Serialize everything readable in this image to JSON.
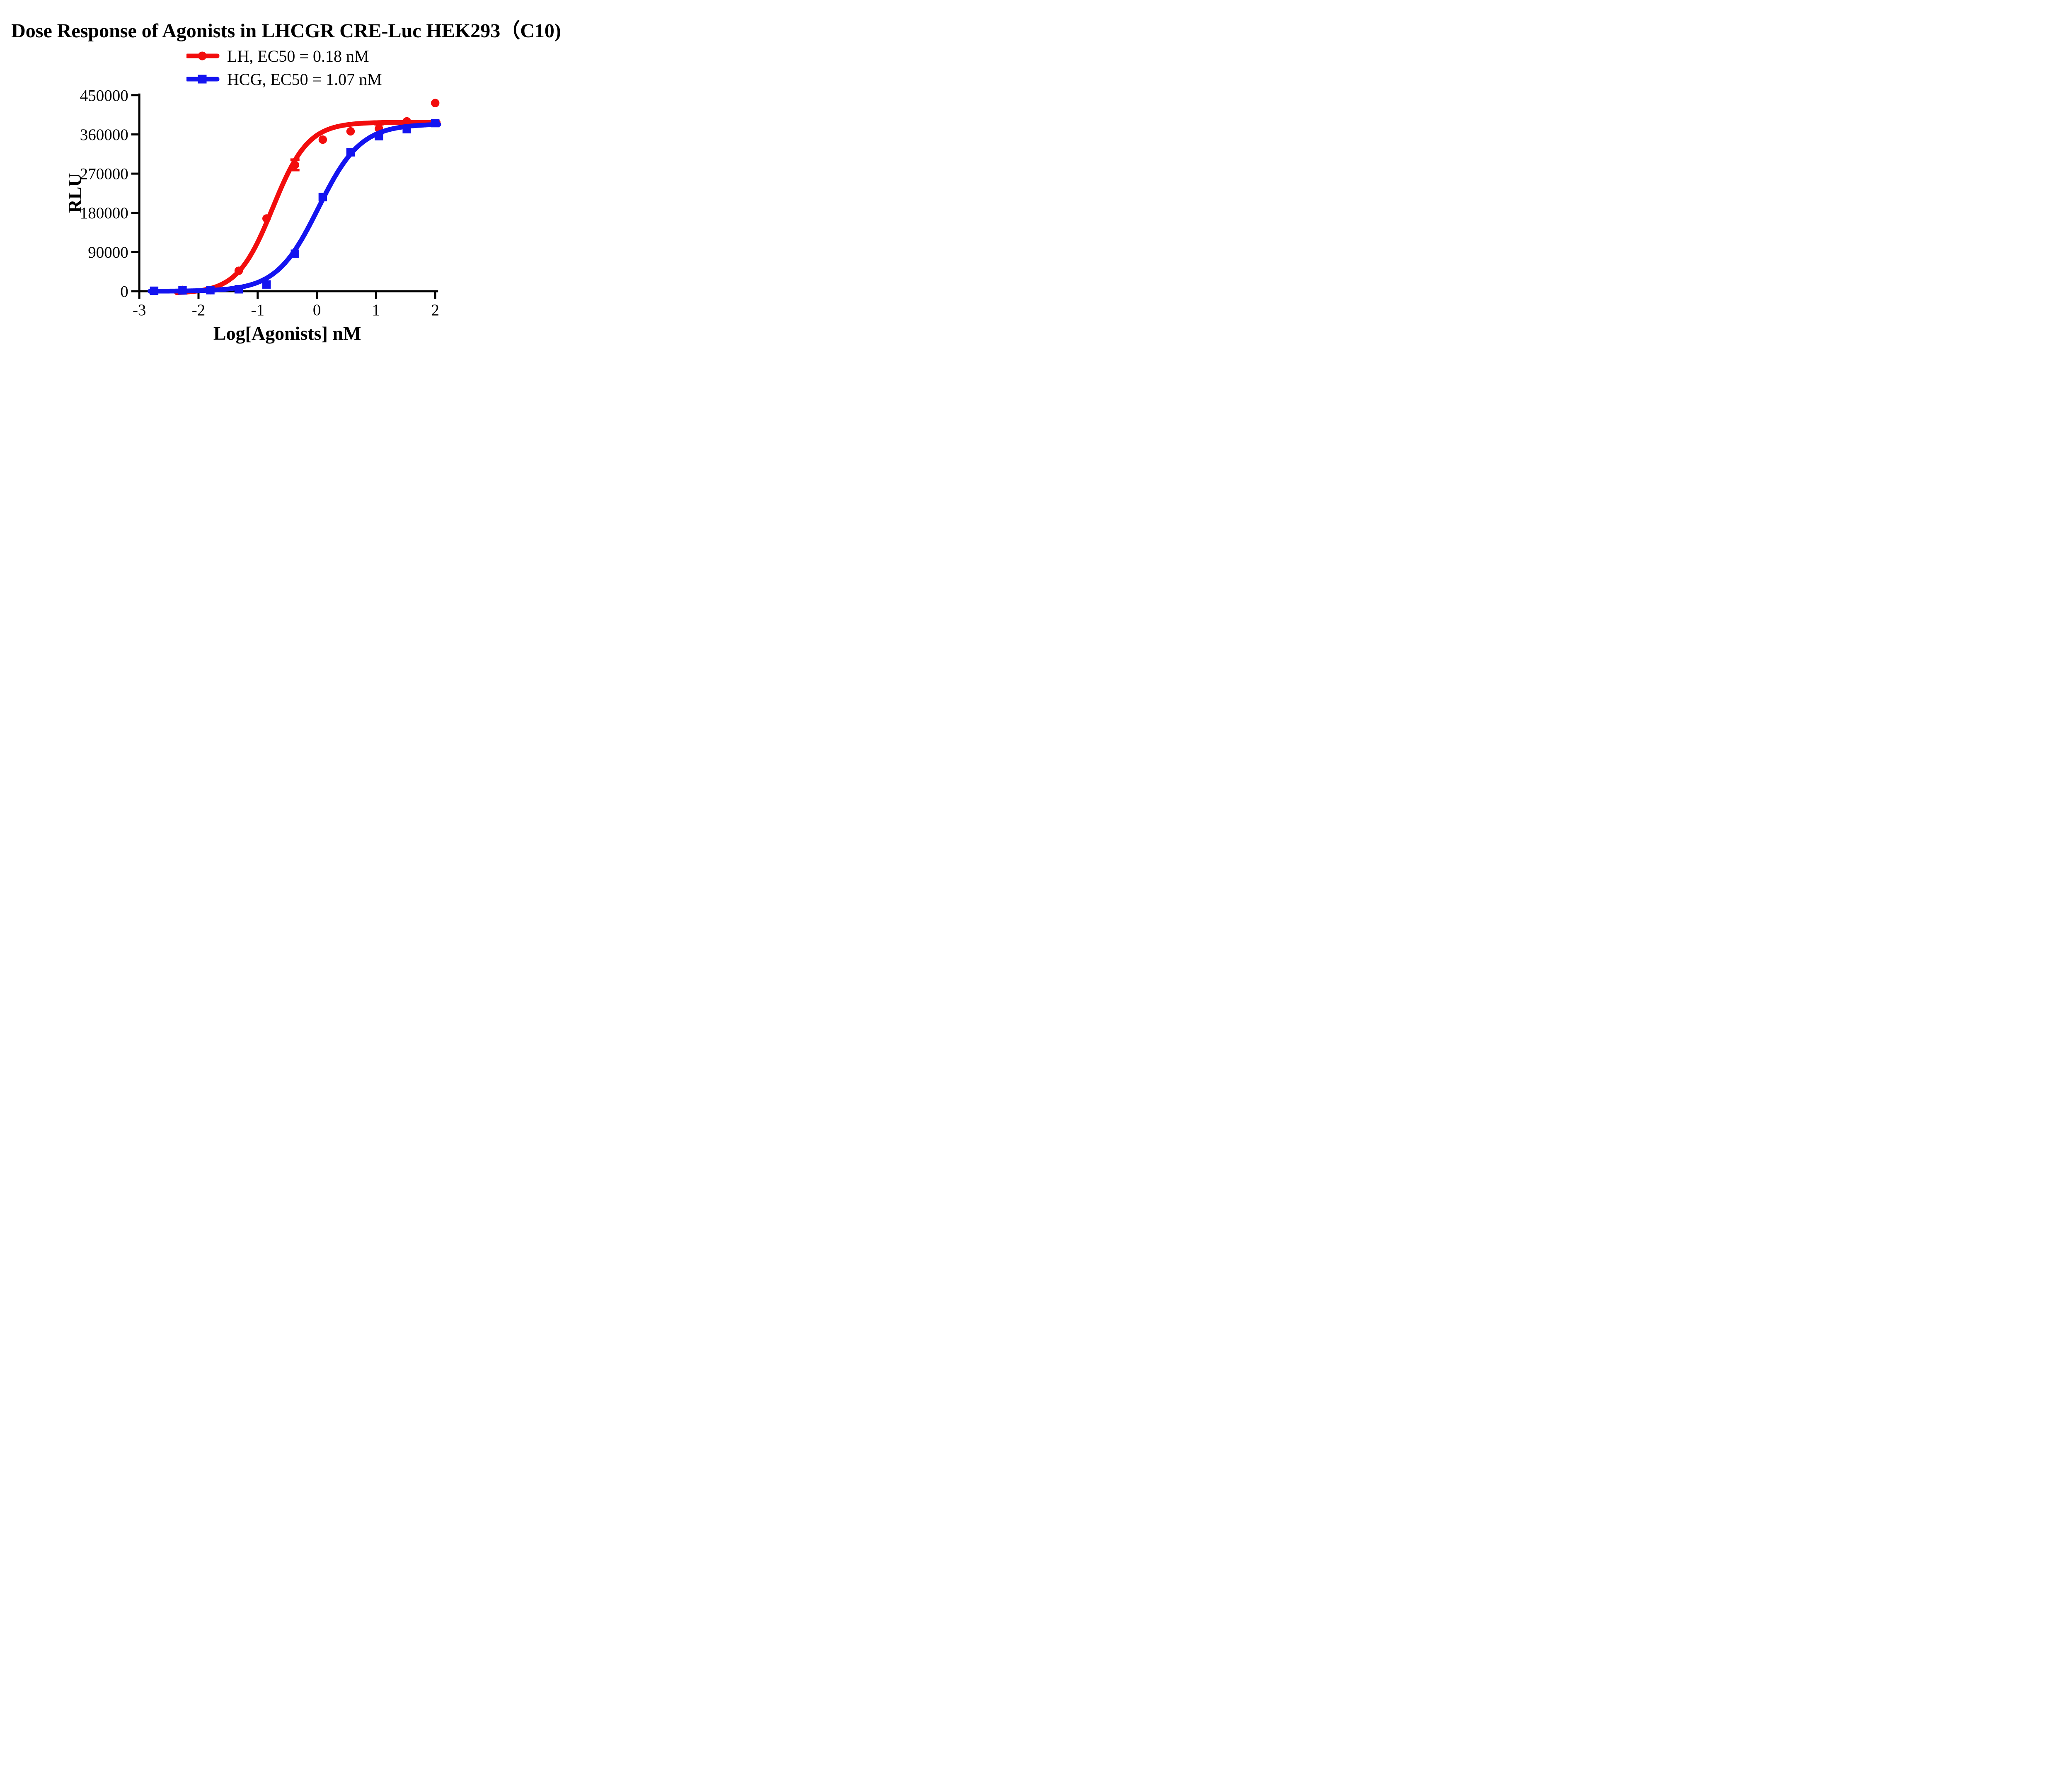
{
  "title": "Dose Response of Agonists in LHCGR CRE-Luc HEK293（C10)",
  "legend": {
    "items": [
      {
        "label": "LH, EC50 = 0.18 nM",
        "color": "#f20d0d",
        "marker": "circle"
      },
      {
        "label": "HCG, EC50 = 1.07 nM",
        "color": "#1414f0",
        "marker": "square"
      }
    ]
  },
  "chart_data": {
    "type": "scatter",
    "fit_model": "4PL sigmoid dose-response",
    "title": "Dose Response of Agonists in LHCGR CRE-Luc HEK293（C10)",
    "xlabel": "Log[Agonists] nM",
    "ylabel": "RLU",
    "xlim": [
      -3,
      2
    ],
    "ylim": [
      0,
      450000
    ],
    "xticks": [
      -3,
      -2,
      -1,
      0,
      1,
      2
    ],
    "yticks": [
      0,
      90000,
      180000,
      270000,
      360000,
      450000
    ],
    "grid": false,
    "legend_position": "top-center",
    "axis_color": "#000000",
    "series": [
      {
        "name": "LH",
        "ec50_nM": 0.18,
        "color": "#f20d0d",
        "marker": "circle",
        "points": [
          {
            "x": -2.27,
            "y": 3000
          },
          {
            "x": -1.8,
            "y": 2500
          },
          {
            "x": -1.32,
            "y": 47000
          },
          {
            "x": -0.85,
            "y": 167000
          },
          {
            "x": -0.37,
            "y": 290000,
            "err": 12000
          },
          {
            "x": 0.1,
            "y": 348000
          },
          {
            "x": 0.57,
            "y": 367000
          },
          {
            "x": 1.05,
            "y": 373000,
            "err": 10000
          },
          {
            "x": 1.52,
            "y": 390000
          },
          {
            "x": 2.0,
            "y": 432000
          }
        ],
        "fit": {
          "top": 388000,
          "bottom": -5000,
          "log_ec50": -0.745,
          "hill": 1.45,
          "x_start": -2.37,
          "x_end": 2.06
        }
      },
      {
        "name": "HCG",
        "ec50_nM": 1.07,
        "color": "#1414f0",
        "marker": "square",
        "points": [
          {
            "x": -2.75,
            "y": 1000
          },
          {
            "x": -2.27,
            "y": 2000
          },
          {
            "x": -1.8,
            "y": 2500
          },
          {
            "x": -1.32,
            "y": 4500
          },
          {
            "x": -0.85,
            "y": 15500
          },
          {
            "x": -0.37,
            "y": 86000
          },
          {
            "x": 0.1,
            "y": 216000
          },
          {
            "x": 0.57,
            "y": 319000
          },
          {
            "x": 1.05,
            "y": 356000
          },
          {
            "x": 1.52,
            "y": 372000
          },
          {
            "x": 2.0,
            "y": 386000
          }
        ],
        "fit": {
          "top": 384000,
          "bottom": 0,
          "log_ec50": 0.029,
          "hill": 1.22,
          "x_start": -2.82,
          "x_end": 2.06
        }
      }
    ]
  }
}
